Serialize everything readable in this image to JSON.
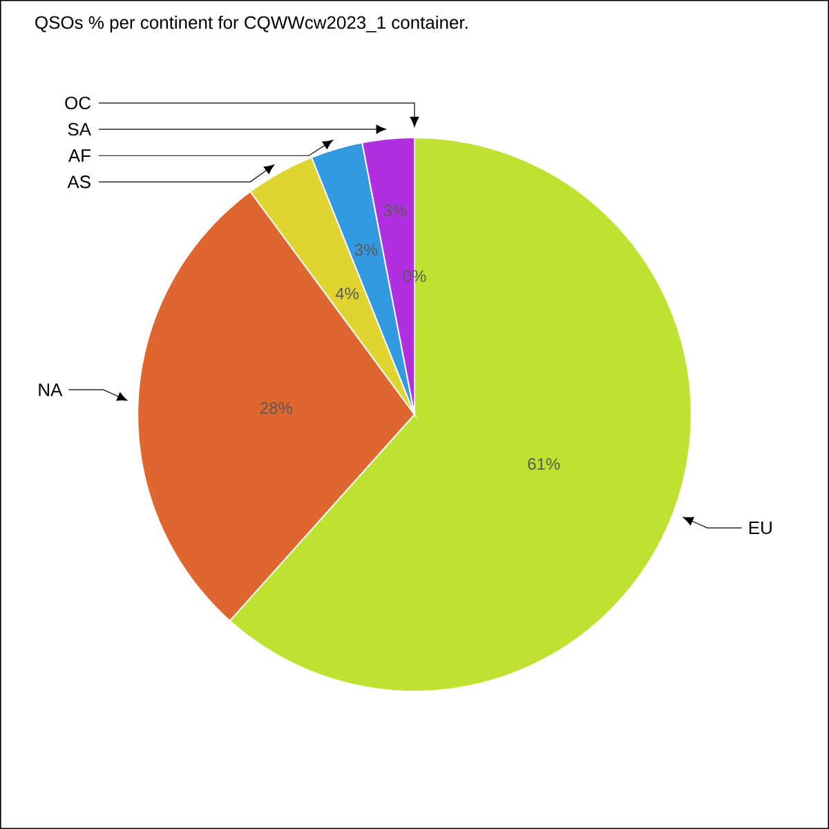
{
  "chart_data": {
    "type": "pie",
    "title": "QSOs % per continent for CQWWcw2023_1 container.",
    "categories": [
      "EU",
      "NA",
      "AS",
      "AF",
      "SA",
      "OC"
    ],
    "values": [
      61,
      28,
      4,
      3,
      3,
      0
    ],
    "value_labels": [
      "61%",
      "28%",
      "4%",
      "3%",
      "3%",
      "0%"
    ],
    "colors": [
      "#bee22f",
      "#e0662f",
      "#e0d530",
      "#3399e0",
      "#b030e0",
      "#e03060"
    ]
  }
}
